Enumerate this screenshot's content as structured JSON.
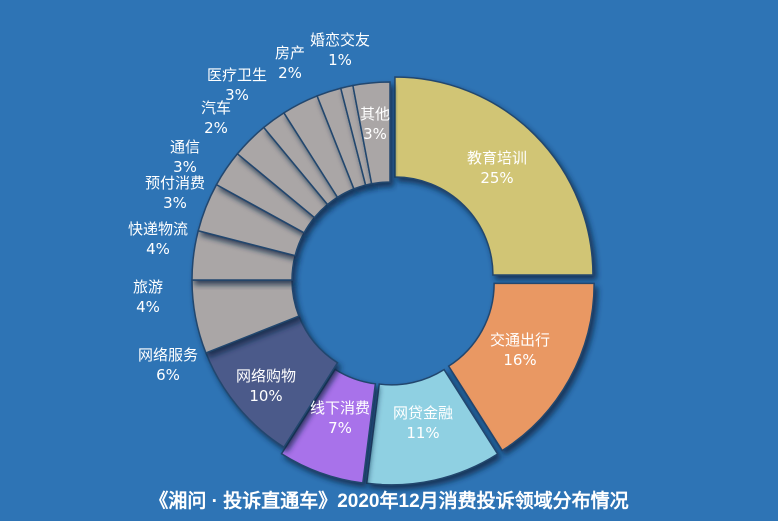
{
  "chart_data": {
    "type": "pie",
    "donut": true,
    "title": "《湘问 · 投诉直通车》2020年12月消费投诉领域分布情况",
    "unit": "%",
    "slices": [
      {
        "label": "教育培训",
        "value": 25,
        "color": "#d1c574",
        "exploded": true
      },
      {
        "label": "交通出行",
        "value": 16,
        "color": "#e99864",
        "exploded": true
      },
      {
        "label": "网贷金融",
        "value": 11,
        "color": "#8fd0e2",
        "exploded": true
      },
      {
        "label": "线下消费",
        "value": 7,
        "color": "#a872ea",
        "exploded": true
      },
      {
        "label": "网络购物",
        "value": 10,
        "color": "#4c5a8a",
        "exploded": false
      },
      {
        "label": "网络服务",
        "value": 6,
        "color": "#aaa6a6",
        "exploded": false
      },
      {
        "label": "旅游",
        "value": 4,
        "color": "#aaa6a6",
        "exploded": false
      },
      {
        "label": "快递物流",
        "value": 4,
        "color": "#aaa6a6",
        "exploded": false
      },
      {
        "label": "预付消费",
        "value": 3,
        "color": "#aaa6a6",
        "exploded": false
      },
      {
        "label": "通信",
        "value": 3,
        "color": "#aaa6a6",
        "exploded": false
      },
      {
        "label": "汽车",
        "value": 2,
        "color": "#aaa6a6",
        "exploded": false
      },
      {
        "label": "医疗卫生",
        "value": 3,
        "color": "#aaa6a6",
        "exploded": false
      },
      {
        "label": "房产",
        "value": 2,
        "color": "#aaa6a6",
        "exploded": false
      },
      {
        "label": "婚恋交友",
        "value": 1,
        "color": "#aaa6a6",
        "exploded": false
      },
      {
        "label": "其他",
        "value": 3,
        "color": "#aaa6a6",
        "exploded": false
      }
    ],
    "background": "#2e74b5"
  }
}
